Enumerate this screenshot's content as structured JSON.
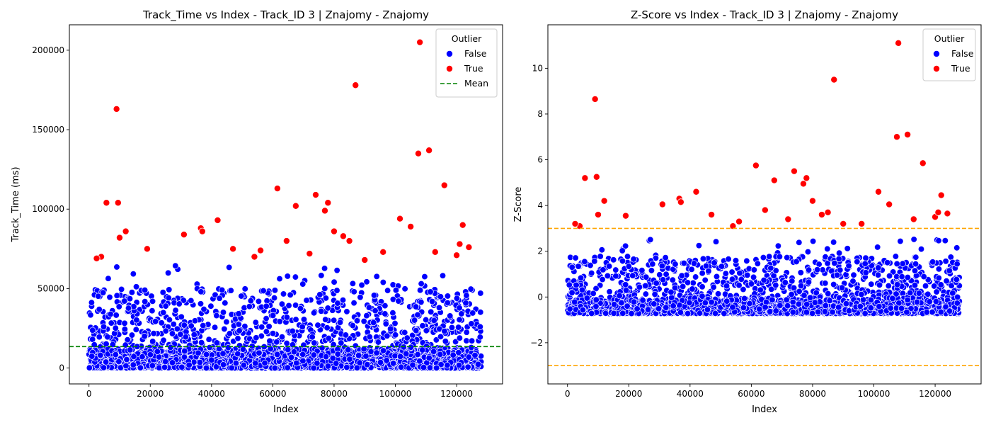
{
  "chart_data": [
    {
      "type": "scatter",
      "title": "Track_Time vs Index - Track_ID 3 | Znajomy - Znajomy",
      "xlabel": "Index",
      "ylabel": "Track_Time (ms)",
      "xlim": [
        -6400,
        135000
      ],
      "ylim": [
        -10000,
        216000
      ],
      "xticks": [
        0,
        20000,
        40000,
        60000,
        80000,
        100000,
        120000
      ],
      "yticks": [
        0,
        50000,
        100000,
        150000,
        200000
      ],
      "x_range": [
        0,
        128000
      ],
      "legend": {
        "title": "Outlier",
        "position": "top-right",
        "entries": [
          "False",
          "True",
          "Mean"
        ]
      },
      "colors": {
        "false": "#0000ff",
        "true": "#ff0000",
        "mean": "#008000"
      },
      "mean_line": 13500,
      "series": [
        {
          "name": "False",
          "note": "dense band of points from about 0 to 50000 ms across all indices, occasional values up to about 65000"
        },
        {
          "name": "True",
          "x": [
            9000,
            108000,
            87000,
            111000,
            107500,
            116000,
            61500,
            67500,
            74000,
            78000,
            77000,
            9500,
            5700,
            122000,
            42000,
            101500,
            12000,
            36500,
            31000,
            64500,
            56000,
            4000,
            72000,
            85000,
            96000,
            10000,
            19000,
            47000,
            80000,
            90000,
            113000,
            120000,
            124000,
            2500,
            37000,
            54000,
            83000,
            105000,
            121000
          ],
          "y": [
            163000,
            205000,
            178000,
            137000,
            135000,
            115000,
            113000,
            102000,
            109000,
            104000,
            99000,
            104000,
            104000,
            90000,
            93000,
            94000,
            86000,
            88000,
            84000,
            80000,
            74000,
            70000,
            72000,
            80000,
            73000,
            82000,
            75000,
            75000,
            86000,
            68000,
            73000,
            71000,
            76000,
            69000,
            86000,
            70000,
            83000,
            89000,
            78000
          ]
        }
      ]
    },
    {
      "type": "scatter",
      "title": "Z-Score vs Index - Track_ID 3 | Znajomy - Znajomy",
      "xlabel": "Index",
      "ylabel": "Z-Score",
      "xlim": [
        -6400,
        135000
      ],
      "ylim": [
        -3.8,
        11.9
      ],
      "xticks": [
        0,
        20000,
        40000,
        60000,
        80000,
        100000,
        120000
      ],
      "yticks": [
        -2,
        0,
        2,
        4,
        6,
        8,
        10
      ],
      "x_range": [
        0,
        128000
      ],
      "legend": {
        "title": "Outlier",
        "position": "top-right",
        "entries": [
          "False",
          "True"
        ]
      },
      "colors": {
        "false": "#0000ff",
        "true": "#ff0000",
        "threshold": "#ffa500"
      },
      "threshold_lines": [
        3,
        -3
      ],
      "series": [
        {
          "name": "False",
          "note": "dense band of points from about -0.7 to 3 across all indices"
        },
        {
          "name": "True",
          "x": [
            9000,
            108000,
            87000,
            111000,
            107500,
            116000,
            61500,
            67500,
            74000,
            78000,
            77000,
            9500,
            5700,
            122000,
            42000,
            101500,
            12000,
            36500,
            31000,
            64500,
            56000,
            4000,
            72000,
            85000,
            96000,
            10000,
            19000,
            47000,
            80000,
            90000,
            113000,
            120000,
            124000,
            2500,
            37000,
            54000,
            83000,
            105000,
            121000
          ],
          "y": [
            8.65,
            11.1,
            9.5,
            7.1,
            7.0,
            5.85,
            5.75,
            5.1,
            5.5,
            5.2,
            4.95,
            5.25,
            5.2,
            4.45,
            4.6,
            4.6,
            4.2,
            4.3,
            4.05,
            3.8,
            3.3,
            3.1,
            3.4,
            3.7,
            3.2,
            3.6,
            3.55,
            3.6,
            4.2,
            3.2,
            3.4,
            3.5,
            3.65,
            3.2,
            4.15,
            3.1,
            3.6,
            4.05,
            3.7
          ]
        }
      ]
    }
  ]
}
